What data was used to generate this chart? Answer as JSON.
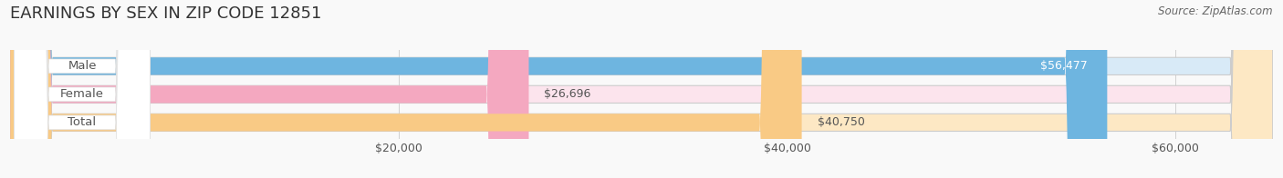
{
  "title": "EARNINGS BY SEX IN ZIP CODE 12851",
  "source_text": "Source: ZipAtlas.com",
  "categories": [
    "Male",
    "Female",
    "Total"
  ],
  "values": [
    56477,
    26696,
    40750
  ],
  "bar_colors": [
    "#6eb5e0",
    "#f4a8c0",
    "#f9ca85"
  ],
  "bar_bg_colors": [
    "#d8eaf7",
    "#fce4ed",
    "#fde8c4"
  ],
  "value_labels": [
    "$56,477",
    "$26,696",
    "$40,750"
  ],
  "value_inside": [
    true,
    false,
    false
  ],
  "tick_labels": [
    "$20,000",
    "$40,000",
    "$60,000"
  ],
  "tick_values": [
    20000,
    40000,
    60000
  ],
  "xmin": 0,
  "xmax": 65000,
  "title_fontsize": 13,
  "label_fontsize": 9.5,
  "value_fontsize": 9,
  "source_fontsize": 8.5,
  "tick_fontsize": 9,
  "bg_color": "#f9f9f9",
  "grid_color": "#d0d0d0",
  "bar_edge_color": "#cccccc",
  "label_text_color": "#555555",
  "value_color_inside": "#ffffff",
  "value_color_outside": "#555555",
  "title_color": "#333333"
}
